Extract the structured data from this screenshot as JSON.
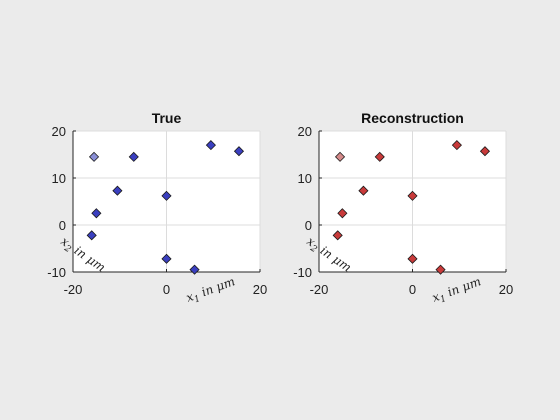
{
  "figure": {
    "background": "#ebebeb"
  },
  "chart_data": [
    {
      "type": "scatter",
      "title": "True",
      "xlabel": "x_1 in μm",
      "ylabel": "x_2 in μm",
      "xlim": [
        -20,
        20
      ],
      "ylim": [
        -10,
        20
      ],
      "xticks": [
        "-20",
        "0",
        "20"
      ],
      "yticks": [
        "-10",
        "0",
        "10",
        "20"
      ],
      "grid": true,
      "marker": "diamond",
      "color": "#3a3fbf",
      "highlight_color": "#8a8fd6",
      "points": [
        {
          "x": -15.5,
          "y": 14.5,
          "highlight": true
        },
        {
          "x": -7.0,
          "y": 14.5
        },
        {
          "x": 9.5,
          "y": 17.0
        },
        {
          "x": 15.5,
          "y": 15.7
        },
        {
          "x": -10.5,
          "y": 7.3
        },
        {
          "x": 0.0,
          "y": 6.2
        },
        {
          "x": -15.0,
          "y": 2.5
        },
        {
          "x": -16.0,
          "y": -2.2
        },
        {
          "x": 0.0,
          "y": -7.2
        },
        {
          "x": 6.0,
          "y": -9.5
        }
      ]
    },
    {
      "type": "scatter",
      "title": "Reconstruction",
      "xlabel": "x_1 in μm",
      "ylabel": "x_2 in μm",
      "xlim": [
        -20,
        20
      ],
      "ylim": [
        -10,
        20
      ],
      "xticks": [
        "-20",
        "0",
        "20"
      ],
      "yticks": [
        "-10",
        "0",
        "10",
        "20"
      ],
      "grid": true,
      "marker": "diamond",
      "color": "#c83a3a",
      "highlight_color": "#d48a8a",
      "points": [
        {
          "x": -15.5,
          "y": 14.5,
          "highlight": true
        },
        {
          "x": -7.0,
          "y": 14.5
        },
        {
          "x": 9.5,
          "y": 17.0
        },
        {
          "x": 15.5,
          "y": 15.7
        },
        {
          "x": -10.5,
          "y": 7.3
        },
        {
          "x": 0.0,
          "y": 6.2
        },
        {
          "x": -15.0,
          "y": 2.5
        },
        {
          "x": -16.0,
          "y": -2.2
        },
        {
          "x": 0.0,
          "y": -7.2
        },
        {
          "x": 6.0,
          "y": -9.5
        }
      ]
    }
  ]
}
